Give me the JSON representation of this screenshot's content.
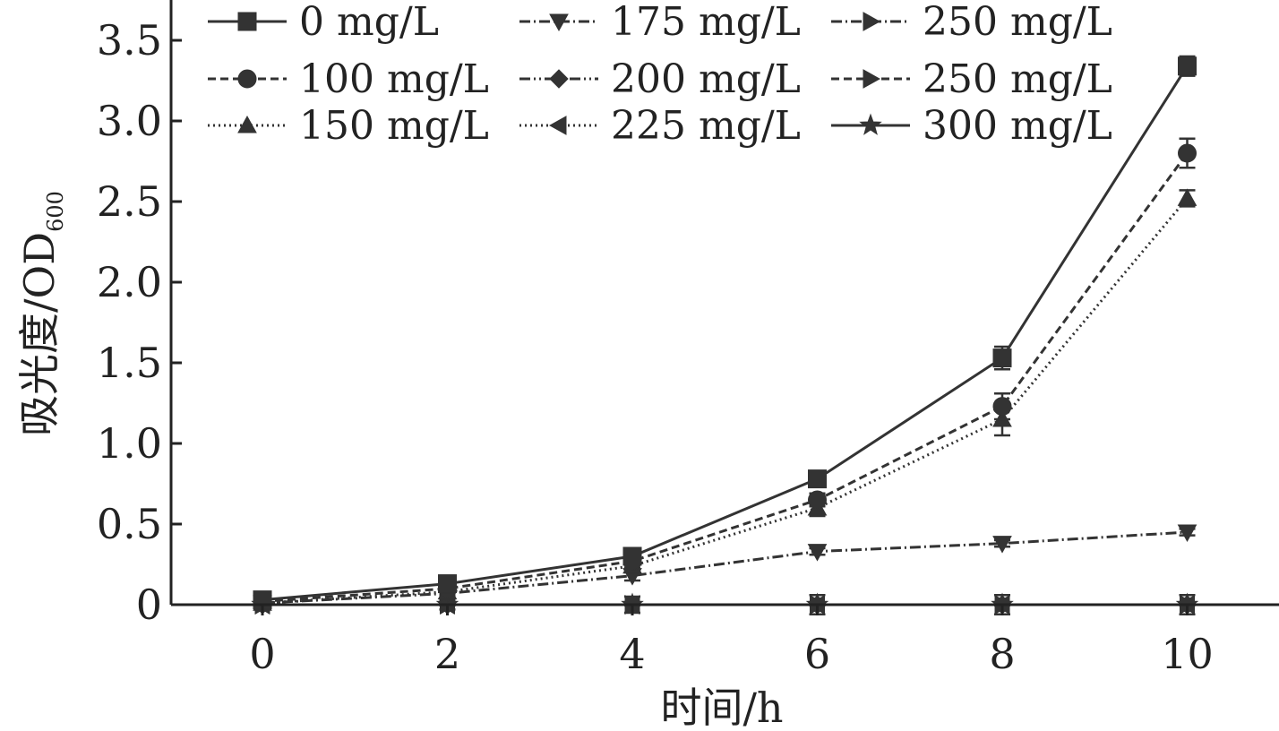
{
  "chart_data": {
    "type": "line",
    "xlabel": "时间/h",
    "ylabel_main": "吸光度/OD",
    "ylabel_sub": "600",
    "x": [
      0,
      2,
      4,
      6,
      8,
      10
    ],
    "x_tick_labels": [
      "0",
      "2",
      "4",
      "6",
      "8",
      "10"
    ],
    "xlim": [
      -1,
      10.7
    ],
    "y_ticks": [
      0,
      0.5,
      1.0,
      1.5,
      2.0,
      2.5,
      3.0,
      3.5
    ],
    "y_tick_labels": [
      "0",
      "0.5",
      "1.0",
      "1.5",
      "2.0",
      "2.5",
      "3.0",
      "3.5"
    ],
    "ylim": [
      0,
      3.7
    ],
    "grid": false,
    "legend_position": "top-left",
    "series": [
      {
        "name": "0 mg/L",
        "marker": "square",
        "dash": "solid",
        "values": [
          0.03,
          0.13,
          0.3,
          0.78,
          1.53,
          3.34
        ],
        "errors": [
          0.04,
          0.05,
          0.05,
          0.03,
          0.07,
          0.06
        ]
      },
      {
        "name": "100 mg/L",
        "marker": "circle",
        "dash": "dashed",
        "values": [
          0.02,
          0.1,
          0.27,
          0.65,
          1.23,
          2.8
        ],
        "errors": [
          0.03,
          0.04,
          0.04,
          0.04,
          0.08,
          0.09
        ]
      },
      {
        "name": "150 mg/L",
        "marker": "triangle-up",
        "dash": "dotted",
        "values": [
          0.01,
          0.08,
          0.24,
          0.6,
          1.15,
          2.52
        ],
        "errors": [
          0.03,
          0.04,
          0.04,
          0.05,
          0.1,
          0.05
        ]
      },
      {
        "name": "175 mg/L",
        "marker": "triangle-down",
        "dash": "dashdot",
        "values": [
          0.01,
          0.07,
          0.18,
          0.33,
          0.38,
          0.45
        ],
        "errors": [
          0.02,
          0.02,
          0.03,
          0.02,
          0.02,
          0.02
        ]
      },
      {
        "name": "200 mg/L",
        "marker": "diamond",
        "dash": "dashdotdot",
        "values": [
          0.0,
          0.0,
          0.0,
          0.0,
          0.0,
          0.0
        ],
        "errors": [
          0.03,
          0.03,
          0.05,
          0.06,
          0.06,
          0.06
        ]
      },
      {
        "name": "225 mg/L",
        "marker": "triangle-left",
        "dash": "dotted",
        "values": [
          0.0,
          0.0,
          0.0,
          0.0,
          0.0,
          0.0
        ],
        "errors": [
          0.0,
          0.0,
          0.0,
          0.0,
          0.0,
          0.0
        ]
      },
      {
        "name": "250 mg/L",
        "marker": "triangle-right",
        "dash": "dashdot",
        "values": [
          0.0,
          0.0,
          0.0,
          0.0,
          0.0,
          0.0
        ],
        "errors": [
          0.0,
          0.0,
          0.0,
          0.0,
          0.0,
          0.0
        ]
      },
      {
        "name": "250 mg/L",
        "marker": "triangle-right",
        "dash": "dashed",
        "values": [
          0.0,
          0.0,
          0.0,
          0.0,
          0.0,
          0.0
        ],
        "errors": [
          0.0,
          0.0,
          0.0,
          0.0,
          0.0,
          0.0
        ]
      },
      {
        "name": "300 mg/L",
        "marker": "star",
        "dash": "solid",
        "values": [
          0.0,
          0.0,
          0.0,
          0.0,
          0.0,
          0.0
        ],
        "errors": [
          0.0,
          0.0,
          0.0,
          0.0,
          0.0,
          0.0
        ]
      }
    ]
  },
  "colors": {
    "line": "#333333",
    "axis": "#222222",
    "background": "#ffffff"
  }
}
